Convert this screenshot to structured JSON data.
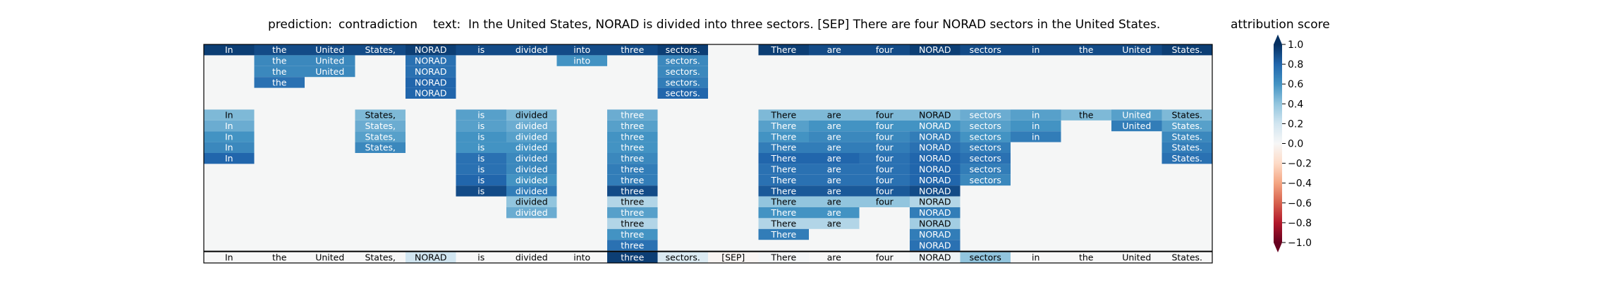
{
  "chart_data": {
    "type": "heatmap",
    "title": {
      "prediction_label": "prediction:",
      "prediction_value": "contradiction",
      "text_label": "text:",
      "text_value": "In the United States, NORAD is divided into three sectors. [SEP] There are four NORAD sectors in the United States."
    },
    "tokens": [
      "In",
      "the",
      "United",
      "States,",
      "NORAD",
      "is",
      "divided",
      "into",
      "three",
      "sectors.",
      "[SEP]",
      "There",
      "are",
      "four",
      "NORAD",
      "sectors",
      "in",
      "the",
      "United",
      "States."
    ],
    "layers": [
      [
        0.95,
        0.9,
        0.9,
        0.9,
        0.95,
        0.9,
        0.9,
        0.9,
        0.9,
        0.95,
        0.0,
        0.95,
        0.9,
        0.9,
        0.95,
        0.9,
        0.9,
        0.9,
        0.9,
        0.95
      ],
      [
        0.0,
        0.65,
        0.65,
        0.0,
        0.75,
        0.0,
        0.0,
        0.6,
        0.0,
        0.65,
        0.0,
        0.0,
        0.0,
        0.0,
        0.0,
        0.0,
        0.0,
        0.0,
        0.0,
        0.0
      ],
      [
        0.0,
        0.65,
        0.65,
        0.0,
        0.75,
        0.0,
        0.0,
        0.0,
        0.0,
        0.65,
        0.0,
        0.0,
        0.0,
        0.0,
        0.0,
        0.0,
        0.0,
        0.0,
        0.0,
        0.0
      ],
      [
        0.0,
        0.75,
        0.0,
        0.0,
        0.8,
        0.0,
        0.0,
        0.0,
        0.0,
        0.7,
        0.0,
        0.0,
        0.0,
        0.0,
        0.0,
        0.0,
        0.0,
        0.0,
        0.0,
        0.0
      ],
      [
        0.0,
        0.0,
        0.0,
        0.0,
        0.8,
        0.0,
        0.0,
        0.0,
        0.0,
        0.8,
        0.0,
        0.0,
        0.0,
        0.0,
        0.0,
        0.0,
        0.0,
        0.0,
        0.0,
        0.0
      ],
      [
        0.0,
        0.0,
        0.0,
        0.0,
        0.0,
        0.0,
        0.0,
        0.0,
        0.0,
        0.0,
        0.0,
        0.0,
        0.0,
        0.0,
        0.0,
        0.0,
        0.0,
        0.0,
        0.0,
        0.0
      ],
      [
        0.45,
        0.0,
        0.0,
        0.45,
        0.0,
        0.55,
        0.45,
        0.0,
        0.5,
        0.0,
        0.0,
        0.45,
        0.45,
        0.45,
        0.45,
        0.5,
        0.55,
        0.45,
        0.55,
        0.45
      ],
      [
        0.5,
        0.0,
        0.0,
        0.5,
        0.0,
        0.55,
        0.5,
        0.0,
        0.55,
        0.0,
        0.0,
        0.55,
        0.6,
        0.6,
        0.6,
        0.55,
        0.6,
        0.0,
        0.7,
        0.55
      ],
      [
        0.6,
        0.0,
        0.0,
        0.55,
        0.0,
        0.6,
        0.55,
        0.0,
        0.6,
        0.0,
        0.0,
        0.6,
        0.65,
        0.65,
        0.7,
        0.6,
        0.7,
        0.0,
        0.0,
        0.65
      ],
      [
        0.65,
        0.0,
        0.0,
        0.65,
        0.0,
        0.6,
        0.6,
        0.0,
        0.6,
        0.0,
        0.0,
        0.7,
        0.7,
        0.7,
        0.75,
        0.7,
        0.0,
        0.0,
        0.0,
        0.7
      ],
      [
        0.8,
        0.0,
        0.0,
        0.0,
        0.0,
        0.75,
        0.65,
        0.0,
        0.65,
        0.0,
        0.0,
        0.8,
        0.8,
        0.75,
        0.8,
        0.75,
        0.0,
        0.0,
        0.0,
        0.75
      ],
      [
        0.0,
        0.0,
        0.0,
        0.0,
        0.0,
        0.75,
        0.65,
        0.0,
        0.7,
        0.0,
        0.0,
        0.75,
        0.75,
        0.75,
        0.8,
        0.7,
        0.0,
        0.0,
        0.0,
        0.0
      ],
      [
        0.0,
        0.0,
        0.0,
        0.0,
        0.0,
        0.8,
        0.6,
        0.0,
        0.7,
        0.0,
        0.0,
        0.75,
        0.75,
        0.75,
        0.8,
        0.65,
        0.0,
        0.0,
        0.0,
        0.0
      ],
      [
        0.0,
        0.0,
        0.0,
        0.0,
        0.0,
        0.9,
        0.7,
        0.0,
        0.9,
        0.0,
        0.0,
        0.85,
        0.85,
        0.85,
        0.9,
        0.0,
        0.0,
        0.0,
        0.0,
        0.0
      ],
      [
        0.0,
        0.0,
        0.0,
        0.0,
        0.0,
        0.0,
        0.4,
        0.0,
        0.3,
        0.0,
        0.0,
        0.4,
        0.4,
        0.4,
        0.3,
        0.0,
        0.0,
        0.0,
        0.0,
        0.0
      ],
      [
        0.0,
        0.0,
        0.0,
        0.0,
        0.0,
        0.0,
        0.5,
        0.0,
        0.55,
        0.0,
        0.0,
        0.6,
        0.6,
        0.0,
        0.7,
        0.0,
        0.0,
        0.0,
        0.0,
        0.0
      ],
      [
        0.0,
        0.0,
        0.0,
        0.0,
        0.0,
        0.0,
        0.0,
        0.0,
        0.3,
        0.0,
        0.0,
        0.3,
        0.3,
        0.0,
        0.35,
        0.0,
        0.0,
        0.0,
        0.0,
        0.0
      ],
      [
        0.0,
        0.0,
        0.0,
        0.0,
        0.0,
        0.0,
        0.0,
        0.0,
        0.6,
        0.0,
        0.0,
        0.7,
        0.0,
        0.0,
        0.7,
        0.0,
        0.0,
        0.0,
        0.0,
        0.0
      ],
      [
        0.0,
        0.0,
        0.0,
        0.0,
        0.0,
        0.0,
        0.0,
        0.0,
        0.75,
        0.0,
        0.0,
        0.0,
        0.0,
        0.0,
        0.75,
        0.0,
        0.0,
        0.0,
        0.0,
        0.0
      ]
    ],
    "summary": [
      0.0,
      0.0,
      0.0,
      0.0,
      0.2,
      0.0,
      0.0,
      0.0,
      0.95,
      0.15,
      -0.02,
      0.02,
      0.0,
      0.0,
      0.05,
      0.4,
      0.0,
      0.0,
      0.0,
      0.0
    ],
    "colorbar": {
      "label": "attribution score",
      "range": [
        -1.0,
        1.0
      ],
      "extend": "both",
      "colormap": "RdBu",
      "ticks": [
        1.0,
        0.8,
        0.6,
        0.4,
        0.2,
        0.0,
        -0.2,
        -0.4,
        -0.6,
        -0.8,
        -1.0
      ],
      "tick_labels": [
        "1.0",
        "0.8",
        "0.6",
        "0.4",
        "0.2",
        "0.0",
        "−0.2",
        "−0.4",
        "−0.6",
        "−0.8",
        "−1.0"
      ]
    },
    "colors": {
      "colormap_stops": [
        "#67001f",
        "#b2182b",
        "#d6604d",
        "#f4a582",
        "#fddbc7",
        "#f7f7f7",
        "#d1e5f0",
        "#92c5de",
        "#4393c3",
        "#2166ac",
        "#053061"
      ]
    }
  }
}
